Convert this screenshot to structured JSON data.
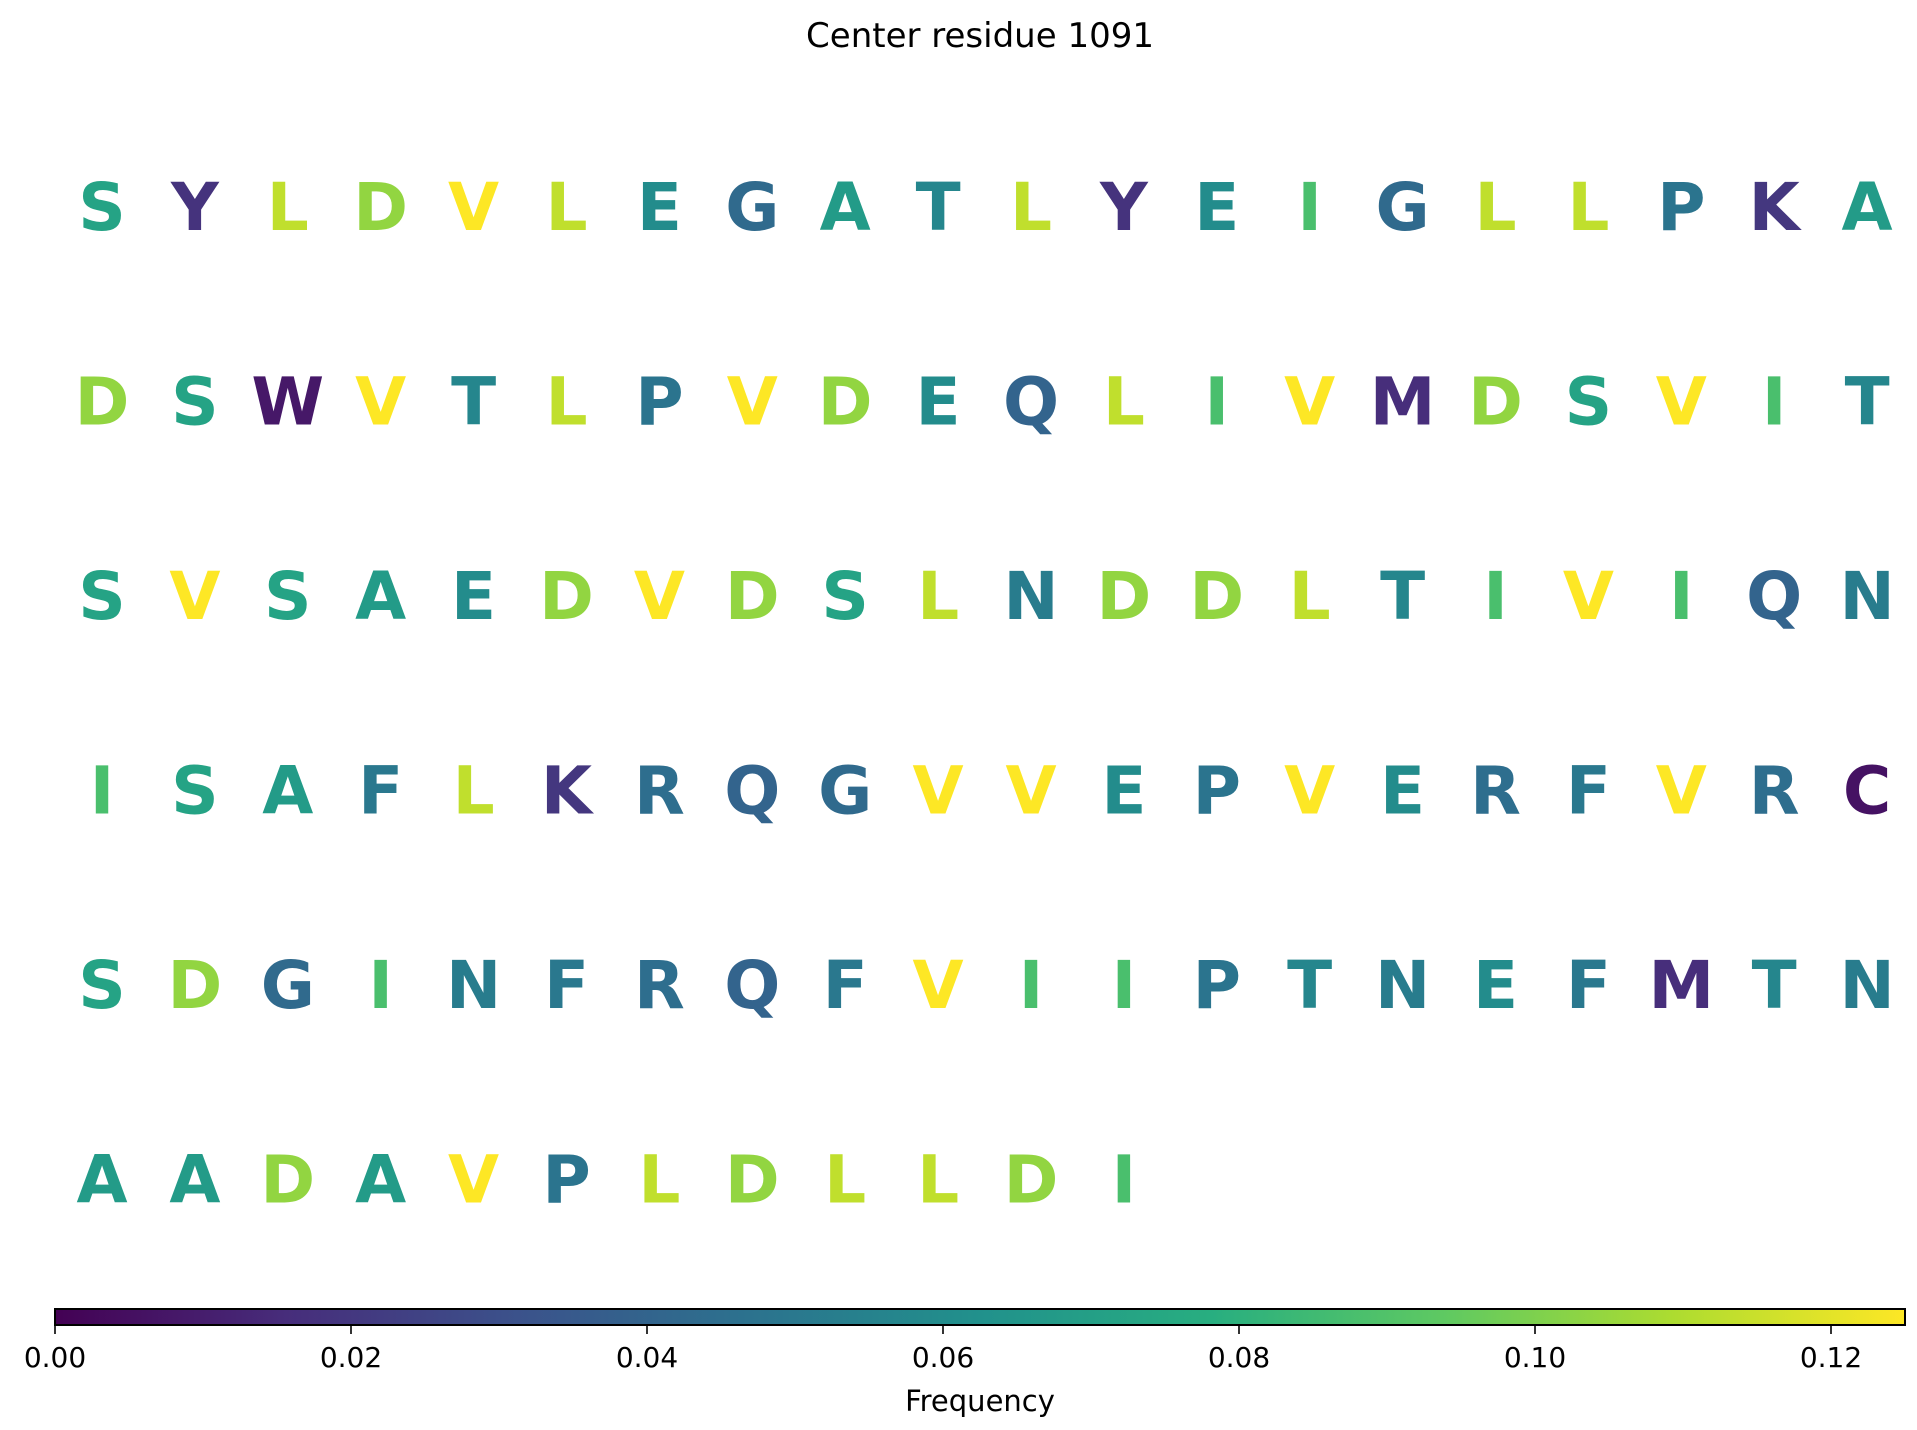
{
  "chart_data": {
    "type": "heatmap",
    "title": "Center residue 1091",
    "colormap": "viridis",
    "colorbar": {
      "label": "Frequency",
      "range": [
        0,
        0.125
      ],
      "ticks": [
        0.0,
        0.02,
        0.04,
        0.06,
        0.08,
        0.1,
        0.12
      ],
      "tick_labels": [
        "0.00",
        "0.02",
        "0.04",
        "0.06",
        "0.08",
        "0.10",
        "0.12"
      ],
      "orientation": "horizontal"
    },
    "rows": [
      {
        "residues": [
          "S",
          "Y",
          "L",
          "D",
          "V",
          "L",
          "E",
          "G",
          "A",
          "T",
          "L",
          "Y",
          "E",
          "I",
          "G",
          "L",
          "L",
          "P",
          "K",
          "A"
        ],
        "values": [
          0.072,
          0.018,
          0.113,
          0.104,
          0.125,
          0.113,
          0.06,
          0.043,
          0.068,
          0.057,
          0.113,
          0.018,
          0.06,
          0.088,
          0.043,
          0.113,
          0.113,
          0.048,
          0.02,
          0.068
        ]
      },
      {
        "residues": [
          "D",
          "S",
          "W",
          "V",
          "T",
          "L",
          "P",
          "V",
          "D",
          "E",
          "Q",
          "L",
          "I",
          "V",
          "M",
          "D",
          "S",
          "V",
          "I",
          "T"
        ],
        "values": [
          0.104,
          0.072,
          0.008,
          0.125,
          0.057,
          0.113,
          0.048,
          0.125,
          0.104,
          0.06,
          0.04,
          0.113,
          0.088,
          0.125,
          0.016,
          0.104,
          0.072,
          0.125,
          0.088,
          0.057
        ]
      },
      {
        "residues": [
          "S",
          "V",
          "S",
          "A",
          "E",
          "D",
          "V",
          "D",
          "S",
          "L",
          "N",
          "D",
          "D",
          "L",
          "T",
          "I",
          "V",
          "I",
          "Q",
          "N"
        ],
        "values": [
          0.072,
          0.125,
          0.072,
          0.068,
          0.06,
          0.104,
          0.125,
          0.104,
          0.072,
          0.113,
          0.052,
          0.104,
          0.104,
          0.113,
          0.057,
          0.088,
          0.125,
          0.088,
          0.04,
          0.052
        ]
      },
      {
        "residues": [
          "I",
          "S",
          "A",
          "F",
          "L",
          "K",
          "R",
          "Q",
          "G",
          "V",
          "V",
          "E",
          "P",
          "V",
          "E",
          "R",
          "F",
          "V",
          "R",
          "C"
        ],
        "values": [
          0.088,
          0.072,
          0.068,
          0.05,
          0.113,
          0.02,
          0.045,
          0.04,
          0.043,
          0.125,
          0.125,
          0.06,
          0.048,
          0.125,
          0.06,
          0.045,
          0.05,
          0.125,
          0.045,
          0.006
        ]
      },
      {
        "residues": [
          "S",
          "D",
          "G",
          "I",
          "N",
          "F",
          "R",
          "Q",
          "F",
          "V",
          "I",
          "I",
          "P",
          "T",
          "N",
          "E",
          "F",
          "M",
          "T",
          "N"
        ],
        "values": [
          0.072,
          0.104,
          0.043,
          0.088,
          0.052,
          0.05,
          0.045,
          0.04,
          0.05,
          0.125,
          0.088,
          0.088,
          0.048,
          0.057,
          0.052,
          0.06,
          0.05,
          0.016,
          0.057,
          0.052
        ]
      },
      {
        "residues": [
          "A",
          "A",
          "D",
          "A",
          "V",
          "P",
          "L",
          "D",
          "L",
          "L",
          "D",
          "I"
        ],
        "values": [
          0.068,
          0.068,
          0.104,
          0.068,
          0.125,
          0.048,
          0.113,
          0.104,
          0.113,
          0.113,
          0.104,
          0.088
        ]
      }
    ]
  }
}
